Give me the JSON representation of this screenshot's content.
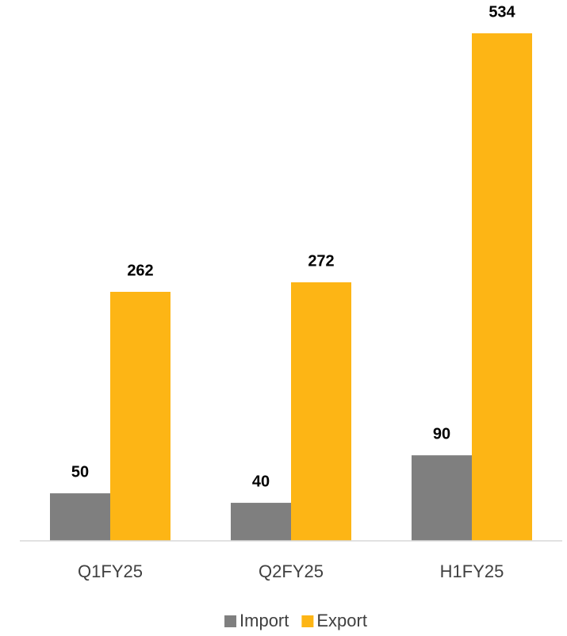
{
  "chart_data": {
    "type": "bar",
    "categories": [
      "Q1FY25",
      "Q2FY25",
      "H1FY25"
    ],
    "series": [
      {
        "name": "Import",
        "color": "#7f7f7f",
        "values": [
          50,
          40,
          90
        ]
      },
      {
        "name": "Export",
        "color": "#fdb515",
        "values": [
          262,
          272,
          534
        ]
      }
    ],
    "ylim": [
      0,
      534
    ],
    "legend": "bottom"
  }
}
